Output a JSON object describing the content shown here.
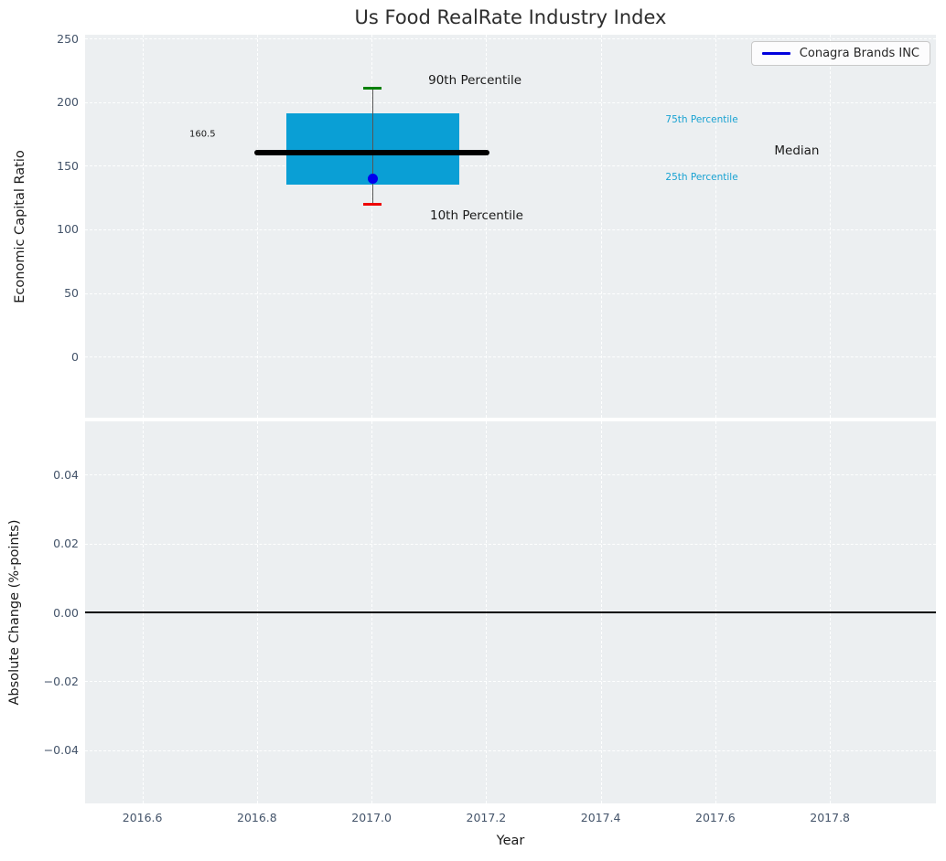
{
  "chart_data": {
    "type": "boxplot",
    "title": "Us Food RealRate Industry Index",
    "legend": {
      "label": "Conagra Brands INC",
      "line_color": "#0000dd",
      "position": "upper right"
    },
    "colors": {
      "panel_bg": "#eceff1",
      "grid": "#ffffff",
      "tick_label": "#44546a",
      "title": "#2d2d2d"
    },
    "x_axis": {
      "label": "Year",
      "lim": [
        2016.5,
        2017.985
      ],
      "ticks": [
        2016.6,
        2016.8,
        2017.0,
        2017.2,
        2017.4,
        2017.6,
        2017.8
      ],
      "tick_labels": [
        "2016.6",
        "2016.8",
        "2017.0",
        "2017.2",
        "2017.4",
        "2017.6",
        "2017.8"
      ]
    },
    "top_panel": {
      "ylabel": "Economic Capital Ratio",
      "ylim": [
        -48,
        253
      ],
      "yticks": [
        0,
        50,
        100,
        150,
        200,
        250
      ],
      "ytick_labels": [
        "0",
        "50",
        "100",
        "150",
        "200",
        "250"
      ],
      "grid": true,
      "boxplot": {
        "x_center": 2017.002,
        "box_halfwidth": 0.151,
        "cap_halfwidth": 0.016,
        "p10": 119.5,
        "p25": 135.5,
        "median": 160.5,
        "p75": 191.5,
        "p90": 211,
        "median_line_span": [
          2016.795,
          2017.206
        ],
        "box_color": "#0a9fd5",
        "median_color": "#000000",
        "p90_cap_color": "#008000",
        "p10_cap_color": "#ee0000",
        "whisker_color": "#555555"
      },
      "company_point": {
        "label": "Conagra Brands INC",
        "x": 2017.002,
        "value": 139.5,
        "color": "#0000ee"
      },
      "annotations": [
        {
          "text": "90th Percentile",
          "x": 2017.099,
          "y": 217.3,
          "color": "#1a1a1a",
          "size": 13.5
        },
        {
          "text": "10th Percentile",
          "x": 2017.102,
          "y": 111.0,
          "color": "#1a1a1a",
          "size": 13.5
        },
        {
          "text": "75th Percentile",
          "x": 2017.513,
          "y": 186.4,
          "color": "#18a2d2",
          "size": 10.5
        },
        {
          "text": "25th Percentile",
          "x": 2017.513,
          "y": 141.2,
          "color": "#18a2d2",
          "size": 10.5
        },
        {
          "text": "Median",
          "x": 2017.703,
          "y": 161.6,
          "color": "#1a1a1a",
          "size": 13.5
        },
        {
          "text": "160.5",
          "x": 2016.682,
          "y": 174.9,
          "color": "#1a1a1a",
          "size": 10
        }
      ]
    },
    "bottom_panel": {
      "ylabel": "Absolute Change (%-points)",
      "ylim": [
        -0.0555,
        0.0555
      ],
      "yticks": [
        -0.04,
        -0.02,
        0,
        0.02,
        0.04
      ],
      "ytick_labels": [
        "−0.04",
        "−0.02",
        "0.00",
        "0.02",
        "0.04"
      ],
      "zero_line": 0.0,
      "zero_line_color": "#000000",
      "grid": true
    }
  }
}
